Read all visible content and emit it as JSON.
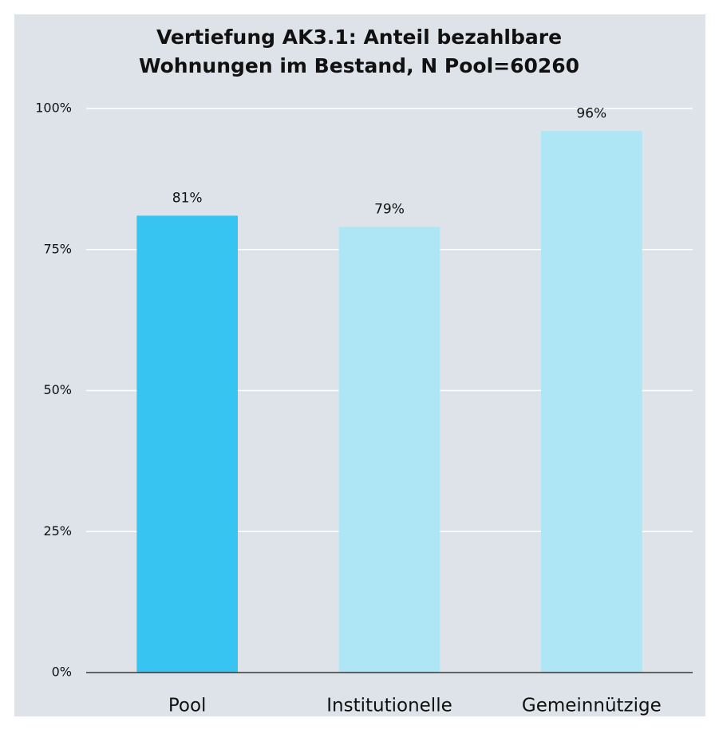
{
  "chart_data": {
    "type": "bar",
    "title": [
      "Vertiefung AK3.1: Anteil bezahlbare",
      "Wohnungen im Bestand, N Pool=60260"
    ],
    "categories": [
      "Pool",
      "Institutionelle",
      "Gemeinnützige"
    ],
    "values": [
      81,
      79,
      96
    ],
    "value_labels": [
      "81%",
      "79%",
      "96%"
    ],
    "colors": [
      "#38c4f0",
      "#aee6f6",
      "#aee6f6"
    ],
    "ylim": [
      0,
      100
    ],
    "yticks": [
      {
        "value": 0,
        "label": "0%"
      },
      {
        "value": 25,
        "label": "25%"
      },
      {
        "value": 50,
        "label": "50%"
      },
      {
        "value": 75,
        "label": "75%"
      },
      {
        "value": 100,
        "label": "100%"
      }
    ],
    "grid": true
  }
}
